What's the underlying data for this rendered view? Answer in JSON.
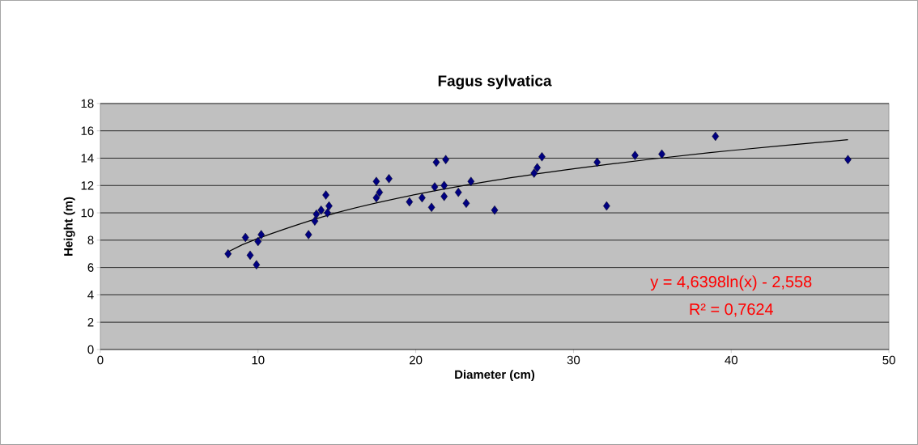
{
  "chart_data": {
    "type": "scatter",
    "title": "Fagus sylvatica",
    "xlabel": "Diameter (cm)",
    "ylabel": "Height (m)",
    "xlim": [
      0,
      50
    ],
    "ylim": [
      0,
      18
    ],
    "xticks": [
      0,
      10,
      20,
      30,
      40,
      50
    ],
    "yticks": [
      0,
      2,
      4,
      6,
      8,
      10,
      12,
      14,
      16,
      18
    ],
    "grid": "y",
    "marker": "diamond",
    "series": [
      {
        "color": "#000080",
        "x": [
          8.1,
          9.2,
          9.5,
          9.9,
          10.0,
          10.2,
          13.2,
          13.6,
          13.7,
          14.0,
          14.3,
          14.5,
          14.4,
          17.5,
          17.7,
          17.5,
          18.3,
          19.6,
          20.4,
          21.0,
          21.2,
          21.3,
          21.9,
          21.8,
          21.8,
          22.7,
          23.2,
          23.5,
          25.0,
          27.5,
          27.7,
          28.0,
          31.5,
          32.1,
          33.9,
          35.6,
          39.0,
          47.4
        ],
        "values": [
          7.0,
          8.2,
          6.9,
          6.2,
          7.9,
          8.4,
          8.4,
          9.4,
          9.9,
          10.2,
          11.3,
          10.5,
          10.0,
          12.3,
          11.5,
          11.1,
          12.5,
          10.8,
          11.1,
          10.4,
          11.9,
          13.7,
          13.9,
          12.0,
          11.2,
          11.5,
          10.7,
          12.3,
          10.2,
          12.9,
          13.3,
          14.1,
          13.7,
          10.5,
          14.2,
          14.3,
          15.6,
          13.9
        ]
      },
      {
        "type": "line",
        "color": "#000000",
        "marker": "none",
        "line_style": "solid",
        "x": [
          8.1,
          10,
          15,
          20,
          25,
          30,
          35,
          40,
          47.4
        ],
        "values": [
          7.15,
          8.13,
          10.01,
          11.34,
          12.38,
          13.22,
          13.94,
          14.56,
          15.35
        ]
      }
    ],
    "annotations": [
      "y = 4,6398ln(x) - 2,558",
      "R² = 0,7624"
    ]
  }
}
